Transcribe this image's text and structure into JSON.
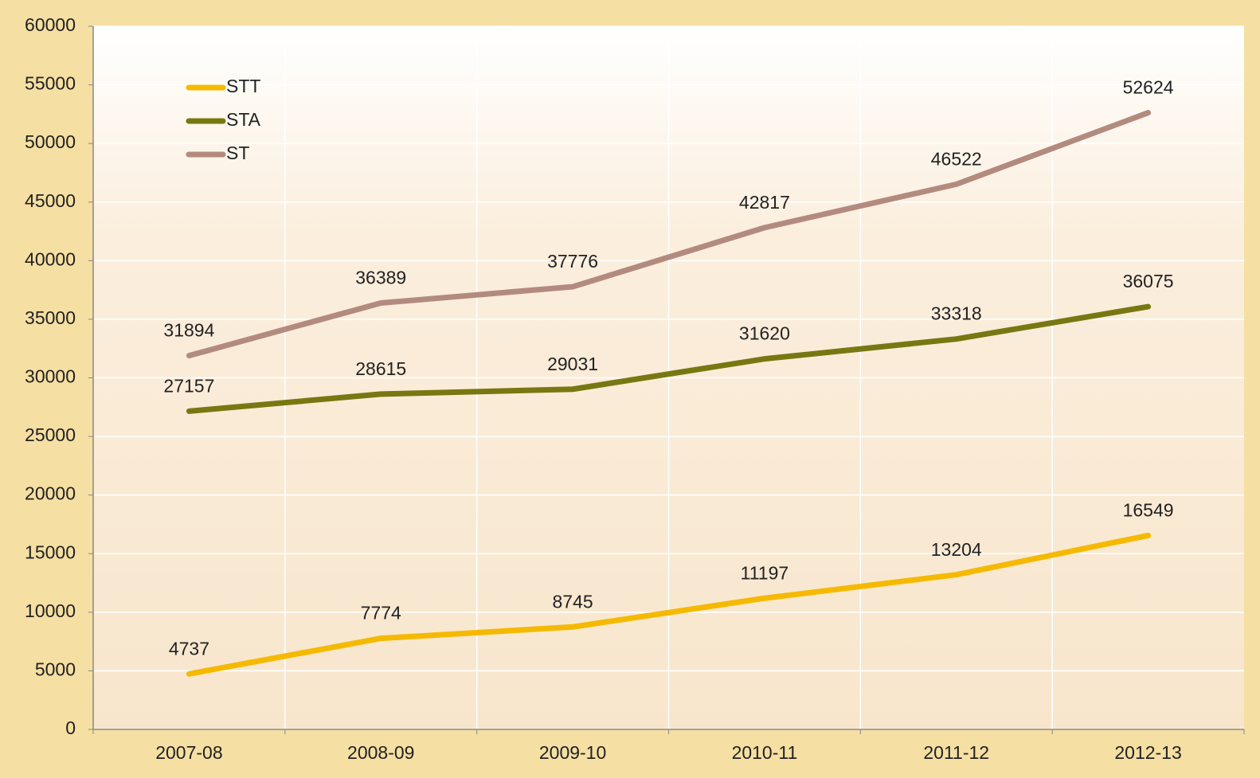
{
  "chart_data": {
    "type": "line",
    "categories": [
      "2007-08",
      "2008-09",
      "2009-10",
      "2010-11",
      "2011-12",
      "2012-13"
    ],
    "series": [
      {
        "name": "STT",
        "color": "#f5b900",
        "values": [
          4737,
          7774,
          8745,
          11197,
          13204,
          16549
        ]
      },
      {
        "name": "STA",
        "color": "#777811",
        "values": [
          27157,
          28615,
          29031,
          31620,
          33318,
          36075
        ]
      },
      {
        "name": "ST",
        "color": "#b38b7e",
        "values": [
          31894,
          36389,
          37776,
          42817,
          46522,
          52624
        ]
      }
    ],
    "ylim": [
      0,
      60000
    ],
    "yticks": [
      0,
      5000,
      10000,
      15000,
      20000,
      25000,
      30000,
      35000,
      40000,
      45000,
      50000,
      55000,
      60000
    ],
    "grid": true,
    "legend": "top-left"
  }
}
